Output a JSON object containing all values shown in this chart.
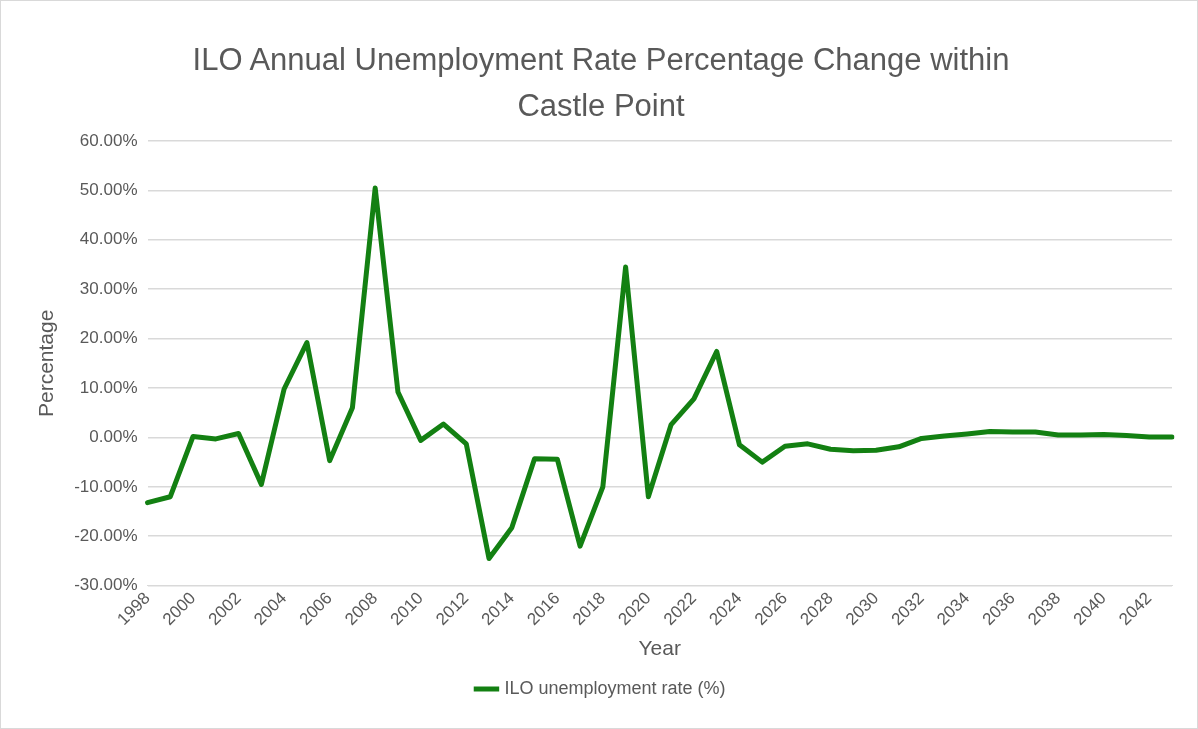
{
  "chart_data": {
    "type": "line",
    "title": "ILO Annual Unemployment Rate Percentage Change within Castle Point",
    "xlabel": "Year",
    "ylabel": "Percentage",
    "categories": [
      "1998",
      null,
      "2000",
      null,
      "2002",
      null,
      "2004",
      null,
      "2006",
      null,
      "2008",
      null,
      "2010",
      null,
      "2012",
      null,
      "2014",
      null,
      "2016",
      null,
      "2018",
      null,
      "2020",
      null,
      "2022",
      null,
      "2024",
      null,
      "2026",
      null,
      "2028",
      null,
      "2030",
      null,
      "2032",
      null,
      "2034",
      null,
      "2036",
      null,
      "2038",
      null,
      "2040",
      null,
      "2042",
      null
    ],
    "series": [
      {
        "name": "ILO unemployment rate (%)",
        "color": "#138012",
        "values": [
          -13.2,
          -12,
          0.2,
          -0.3,
          0.8,
          -9.5,
          9.8,
          19.2,
          -4.7,
          6,
          50.5,
          9.2,
          -0.6,
          2.7,
          -1.3,
          -24.5,
          -18.3,
          -4.3,
          -4.4,
          -22,
          -10,
          34.5,
          -12,
          2.6,
          7.8,
          17.4,
          -1.5,
          -5,
          -1.8,
          -1.3,
          -2.4,
          -2.7,
          -2.6,
          -1.9,
          -0.2,
          0.3,
          0.7,
          1.2,
          1.1,
          1.1,
          0.5,
          0.5,
          0.6,
          0.4,
          0.1,
          0.1
        ]
      }
    ],
    "ylim": [
      -30,
      60
    ],
    "yticks": [
      {
        "value": -30,
        "label": "-30.00%"
      },
      {
        "value": -20,
        "label": "-20.00%"
      },
      {
        "value": -10,
        "label": "-10.00%"
      },
      {
        "value": 0,
        "label": "0.00%"
      },
      {
        "value": 10,
        "label": "10.00%"
      },
      {
        "value": 20,
        "label": "20.00%"
      },
      {
        "value": 30,
        "label": "30.00%"
      },
      {
        "value": 40,
        "label": "40.00%"
      },
      {
        "value": 50,
        "label": "50.00%"
      },
      {
        "value": 60,
        "label": "60.00%"
      }
    ],
    "grid": "y",
    "legend": "bottom",
    "marker": "none",
    "line_style": "solid"
  }
}
